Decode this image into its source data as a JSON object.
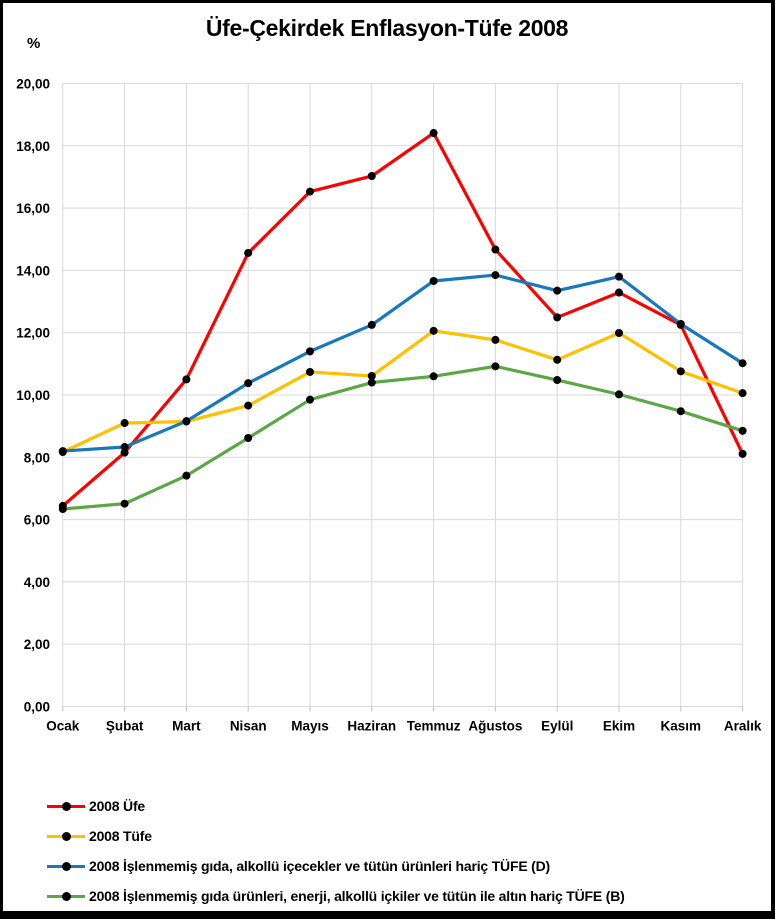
{
  "figure": {
    "title": "Üfe-Çekirdek Enflasyon-Tüfe 2008",
    "y_axis_unit": "%"
  },
  "chart_data": {
    "type": "line",
    "title": "Üfe-Çekirdek Enflasyon-Tüfe 2008",
    "xlabel": "",
    "ylabel": "%",
    "ylim": [
      0,
      20
    ],
    "ytick_step": 2,
    "ytick_labels": [
      "0,00",
      "2,00",
      "4,00",
      "6,00",
      "8,00",
      "10,00",
      "12,00",
      "14,00",
      "16,00",
      "18,00",
      "20,00"
    ],
    "grid": true,
    "gridline_color": "#d9d9d9",
    "legend_position": "bottom-left",
    "categories": [
      "Ocak",
      "Şubat",
      "Mart",
      "Nisan",
      "Mayıs",
      "Haziran",
      "Temmuz",
      "Ağustos",
      "Eylül",
      "Ekim",
      "Kasım",
      "Aralık"
    ],
    "series": [
      {
        "name": "2008 Üfe",
        "color": "#fe0000",
        "values": [
          6.44,
          8.15,
          10.5,
          14.56,
          16.53,
          17.03,
          18.41,
          14.67,
          12.49,
          13.29,
          12.25,
          8.11
        ]
      },
      {
        "name": "2008 Tüfe",
        "color": "#ffc000",
        "values": [
          8.17,
          9.1,
          9.15,
          9.66,
          10.74,
          10.61,
          12.06,
          11.77,
          11.13,
          11.99,
          10.76,
          10.06
        ]
      },
      {
        "name": "2008 İşlenmemiş gıda, alkollü içecekler ve tütün ürünleri hariç TÜFE (D)",
        "color": "#1878be",
        "values": [
          8.2,
          8.33,
          9.16,
          10.38,
          11.4,
          12.25,
          13.66,
          13.85,
          13.35,
          13.8,
          12.28,
          11.02
        ]
      },
      {
        "name": "2008 İşlenmemiş gıda ürünleri, enerji, alkollü içkiler ve tütün ile altın hariç TÜFE (B)",
        "color": "#5ba746",
        "values": [
          6.34,
          6.51,
          7.41,
          8.62,
          9.85,
          10.4,
          10.6,
          10.92,
          10.48,
          10.02,
          9.48,
          8.85
        ]
      }
    ],
    "marker": {
      "shape": "circle",
      "color": "#000000",
      "radius": 4
    }
  }
}
